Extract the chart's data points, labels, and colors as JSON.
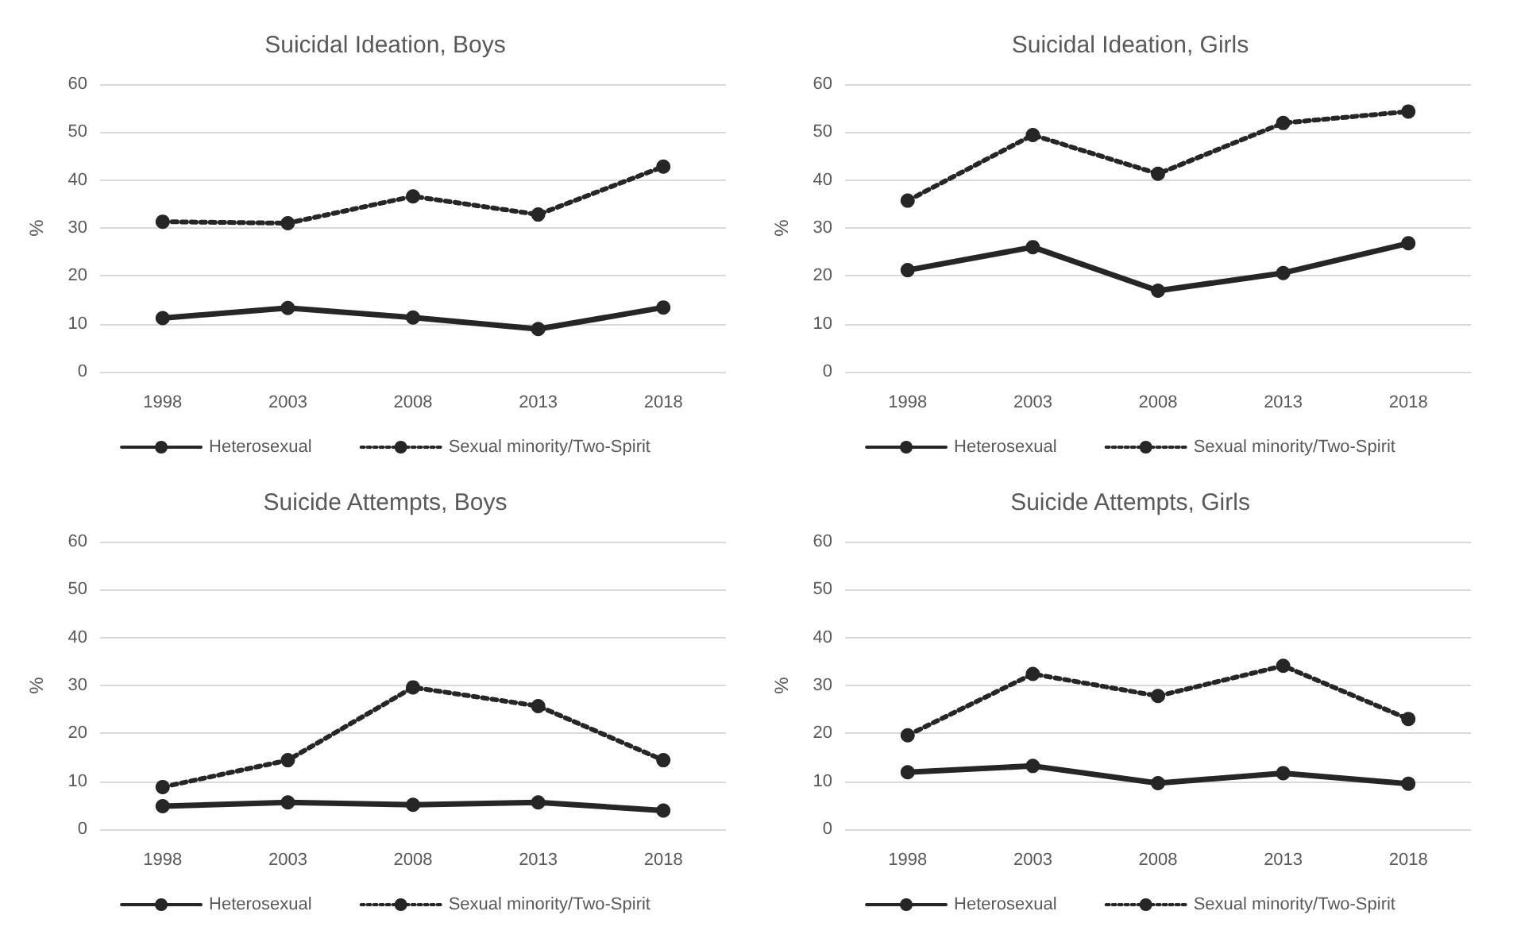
{
  "chart_data": [
    {
      "type": "line",
      "title": "Suicidal Ideation, Boys",
      "ylabel": "%",
      "categories": [
        "1998",
        "2003",
        "2008",
        "2013",
        "2018"
      ],
      "ylim": [
        0,
        60
      ],
      "yticks": [
        0,
        10,
        20,
        30,
        40,
        50,
        60
      ],
      "grid": "y",
      "legend": "bottom",
      "marker": "circle",
      "series": [
        {
          "name": "Heterosexual",
          "color": "#262626",
          "line_style": "solid",
          "values": [
            11.2,
            13.3,
            11.3,
            8.9,
            13.4
          ]
        },
        {
          "name": "Sexual minority/Two-Spirit",
          "color": "#262626",
          "line_style": "dotted",
          "values": [
            31.3,
            31.0,
            36.6,
            32.8,
            42.8
          ]
        }
      ]
    },
    {
      "type": "line",
      "title": "Suicidal Ideation, Girls",
      "ylabel": "%",
      "categories": [
        "1998",
        "2003",
        "2008",
        "2013",
        "2018"
      ],
      "ylim": [
        0,
        60
      ],
      "yticks": [
        0,
        10,
        20,
        30,
        40,
        50,
        60
      ],
      "grid": "y",
      "legend": "bottom",
      "marker": "circle",
      "series": [
        {
          "name": "Heterosexual",
          "color": "#262626",
          "line_style": "solid",
          "values": [
            21.2,
            26.0,
            16.9,
            20.6,
            26.8
          ]
        },
        {
          "name": "Sexual minority/Two-Spirit",
          "color": "#262626",
          "line_style": "dotted",
          "values": [
            35.7,
            49.4,
            41.3,
            51.9,
            54.3
          ]
        }
      ]
    },
    {
      "type": "line",
      "title": "Suicide Attempts, Boys",
      "ylabel": "%",
      "categories": [
        "1998",
        "2003",
        "2008",
        "2013",
        "2018"
      ],
      "ylim": [
        0,
        60
      ],
      "yticks": [
        0,
        10,
        20,
        30,
        40,
        50,
        60
      ],
      "grid": "y",
      "legend": "bottom",
      "marker": "circle",
      "series": [
        {
          "name": "Heterosexual",
          "color": "#262626",
          "line_style": "solid",
          "values": [
            4.8,
            5.6,
            5.1,
            5.6,
            3.9
          ]
        },
        {
          "name": "Sexual minority/Two-Spirit",
          "color": "#262626",
          "line_style": "dotted",
          "values": [
            8.8,
            14.4,
            29.6,
            25.7,
            14.4
          ]
        }
      ]
    },
    {
      "type": "line",
      "title": "Suicide Attempts, Girls",
      "ylabel": "%",
      "categories": [
        "1998",
        "2003",
        "2008",
        "2013",
        "2018"
      ],
      "ylim": [
        0,
        60
      ],
      "yticks": [
        0,
        10,
        20,
        30,
        40,
        50,
        60
      ],
      "grid": "y",
      "legend": "bottom",
      "marker": "circle",
      "series": [
        {
          "name": "Heterosexual",
          "color": "#262626",
          "line_style": "solid",
          "values": [
            11.9,
            13.2,
            9.6,
            11.7,
            9.5
          ]
        },
        {
          "name": "Sexual minority/Two-Spirit",
          "color": "#262626",
          "line_style": "dotted",
          "values": [
            19.6,
            32.4,
            27.8,
            34.1,
            23.0
          ]
        }
      ]
    }
  ]
}
